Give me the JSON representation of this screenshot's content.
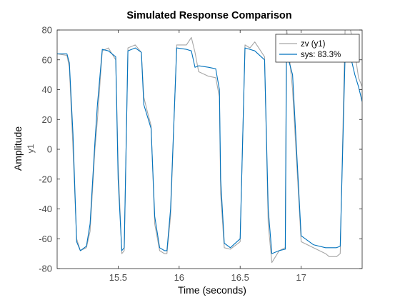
{
  "chart_data": {
    "type": "line",
    "title": "Simulated Response Comparison",
    "xlabel": "Time (seconds)",
    "ylabel": "Amplitude",
    "y_channel_label": "y1",
    "xlim": [
      15.0,
      17.5
    ],
    "ylim": [
      -80,
      80
    ],
    "x_ticks": [
      15.5,
      16,
      16.5,
      17
    ],
    "y_ticks": [
      -80,
      -60,
      -40,
      -20,
      0,
      20,
      40,
      60,
      80
    ],
    "grid": false,
    "legend_position": "top-right",
    "series": [
      {
        "name": "zv (y1)",
        "color": "#a6a6a6",
        "x": [
          15.0,
          15.08,
          15.1,
          15.13,
          15.16,
          15.19,
          15.24,
          15.27,
          15.31,
          15.33,
          15.37,
          15.42,
          15.48,
          15.5,
          15.53,
          15.55,
          15.58,
          15.64,
          15.69,
          15.71,
          15.74,
          15.77,
          15.8,
          15.84,
          15.88,
          15.9,
          15.93,
          15.98,
          16.06,
          16.1,
          16.13,
          16.16,
          16.24,
          16.3,
          16.33,
          16.34,
          16.37,
          16.42,
          16.5,
          16.54,
          16.58,
          16.62,
          16.7,
          16.73,
          16.76,
          16.82,
          16.87,
          16.88,
          16.93,
          17.0,
          17.1,
          17.2,
          17.23,
          17.29,
          17.32,
          17.36,
          17.4,
          17.44,
          17.47,
          17.5
        ],
        "y": [
          64,
          63,
          55,
          0,
          -60,
          -68,
          -66,
          -55,
          0,
          20,
          66,
          68,
          60,
          -10,
          -70,
          -68,
          68,
          70,
          65,
          35,
          25,
          16,
          -50,
          -68,
          -70,
          -70,
          -45,
          70,
          70,
          75,
          65,
          52,
          49,
          48,
          35,
          -30,
          -66,
          -67,
          -62,
          70,
          68,
          72,
          62,
          -50,
          -76,
          -68,
          -66,
          82,
          40,
          -62,
          -66,
          -70,
          -72,
          -72,
          -70,
          80,
          82,
          65,
          48,
          42
        ]
      },
      {
        "name": "sys: 83.3%",
        "color": "#0072bd",
        "x": [
          15.0,
          15.08,
          15.1,
          15.13,
          15.16,
          15.19,
          15.24,
          15.27,
          15.31,
          15.33,
          15.37,
          15.42,
          15.48,
          15.5,
          15.53,
          15.55,
          15.58,
          15.64,
          15.69,
          15.71,
          15.74,
          15.77,
          15.8,
          15.84,
          15.88,
          15.9,
          15.93,
          15.98,
          16.06,
          16.1,
          16.13,
          16.16,
          16.24,
          16.3,
          16.33,
          16.34,
          16.37,
          16.42,
          16.5,
          16.54,
          16.58,
          16.62,
          16.7,
          16.73,
          16.76,
          16.82,
          16.87,
          16.88,
          16.93,
          17.0,
          17.1,
          17.2,
          17.23,
          17.29,
          17.32,
          17.36,
          17.4,
          17.44,
          17.47,
          17.5
        ],
        "y": [
          64,
          64,
          58,
          10,
          -62,
          -68,
          -65,
          -50,
          5,
          30,
          67,
          66,
          62,
          -20,
          -68,
          -66,
          66,
          68,
          65,
          30,
          22,
          14,
          -45,
          -66,
          -68,
          -68,
          -40,
          68,
          67,
          66,
          55,
          56,
          55,
          54,
          40,
          -20,
          -63,
          -66,
          -60,
          68,
          67,
          66,
          60,
          -40,
          -70,
          -68,
          -67,
          65,
          50,
          -58,
          -64,
          -66,
          -66,
          -66,
          -65,
          62,
          64,
          50,
          42,
          32
        ]
      }
    ]
  }
}
